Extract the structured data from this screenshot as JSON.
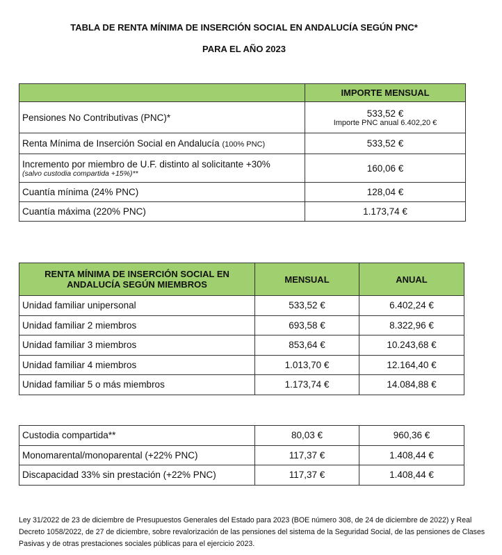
{
  "title": {
    "line1": "TABLA DE RENTA MÍNIMA DE INSERCIÓN SOCIAL EN ANDALUCÍA SEGÚN PNC*",
    "line2": "PARA EL AÑO 2023"
  },
  "table1": {
    "header": "IMPORTE MENSUAL",
    "rows": [
      {
        "label": "Pensiones No Contributivas (PNC)*",
        "value": "533,52 €",
        "sub": "Importe PNC anual 6.402,20 €"
      },
      {
        "label": "Renta Mínima de Inserción Social en Andalucía",
        "small": "(100% PNC)",
        "value": "533,52 €"
      },
      {
        "label": "Incremento por miembro de U.F. distinto al solicitante +30%",
        "note": "(salvo custodia compartida +15%)**",
        "value": "160,06 €"
      },
      {
        "label": "Cuantía mínima (24% PNC)",
        "value": "128,04 €"
      },
      {
        "label": "Cuantía máxima (220% PNC)",
        "value": "1.173,74 €"
      }
    ]
  },
  "table2": {
    "headers": [
      "RENTA MÍNIMA DE INSERCIÓN SOCIAL EN ANDALUCÍA SEGÚN MIEMBROS",
      "MENSUAL",
      "ANUAL"
    ],
    "rows": [
      [
        "Unidad familiar unipersonal",
        "533,52 €",
        "6.402,24 €"
      ],
      [
        "Unidad familiar 2 miembros",
        "693,58 €",
        "8.322,96 €"
      ],
      [
        "Unidad familiar 3 miembros",
        "853,64 €",
        "10.243,68 €"
      ],
      [
        "Unidad familiar 4 miembros",
        "1.013,70 €",
        "12.164,40 €"
      ],
      [
        "Unidad familiar 5 o más miembros",
        "1.173,74 €",
        "14.084,88 €"
      ]
    ]
  },
  "table3": {
    "rows": [
      [
        "Custodia compartida**",
        "80,03 €",
        "960,36 €"
      ],
      [
        "Monomarental/monoparental (+22% PNC)",
        "117,37 €",
        "1.408,44 €"
      ],
      [
        "Discapacidad 33% sin prestación (+22% PNC)",
        "117,37 €",
        "1.408,44 €"
      ]
    ]
  },
  "footnote": "Ley 31/2022 de 23 de diciembre de Presupuestos Generales del Estado para 2023 (BOE número 308, de 24 de diciembre de 2022) y Real Decreto 1058/2022, de 27 de diciembre, sobre revalorización de las pensiones del sistema de la Seguridad Social, de las pensiones de Clases Pasivas y de otras prestaciones sociales públicas para el ejercicio 2023."
}
